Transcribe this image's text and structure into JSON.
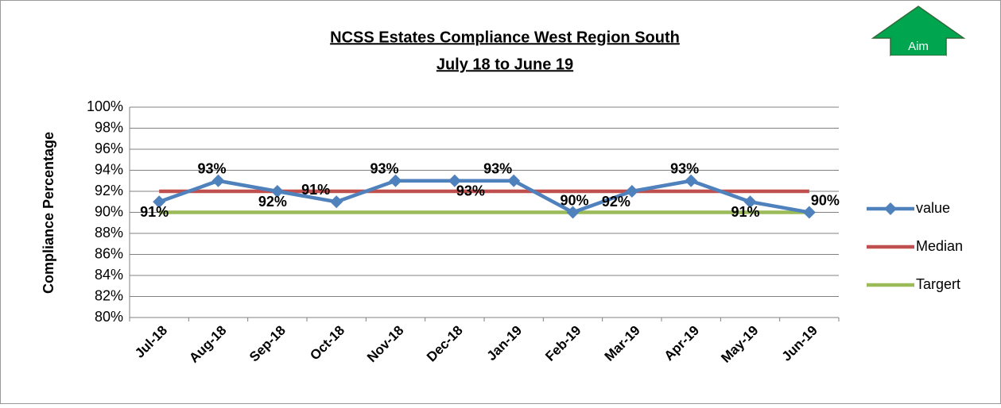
{
  "chart_data": {
    "type": "line",
    "title": "NCSS Estates Compliance West Region South",
    "subtitle": "July 18 to June 19",
    "y_label": "Compliance Percentage",
    "annotation": [
      "Aim",
      "90%"
    ],
    "categories": [
      "Jul-18",
      "Aug-18",
      "Sep-18",
      "Oct-18",
      "Nov-18",
      "Dec-18",
      "Jan-19",
      "Feb-19",
      "Mar-19",
      "Apr-19",
      "May-19",
      "Jun-19"
    ],
    "series": [
      {
        "name": "value",
        "color": "#4f81bd",
        "values": [
          91,
          93,
          92,
          91,
          93,
          93,
          93,
          90,
          92,
          93,
          91,
          90
        ],
        "value_labels": [
          "91%",
          "93%",
          "92%",
          "91%",
          "93%",
          "93%",
          "93%",
          "90%",
          "92%",
          "93%",
          "91%",
          "90%"
        ],
        "marker": "diamond"
      },
      {
        "name": "Median",
        "color": "#c0504d",
        "values": [
          92,
          92,
          92,
          92,
          92,
          92,
          92,
          92,
          92,
          92,
          92,
          92
        ]
      },
      {
        "name": "Targert",
        "color": "#9bbb59",
        "values": [
          90,
          90,
          90,
          90,
          90,
          90,
          90,
          90,
          90,
          90,
          90,
          90
        ]
      }
    ],
    "ylim": [
      80,
      100
    ],
    "yticks": [
      {
        "value": 80,
        "label": "80%"
      },
      {
        "value": 82,
        "label": "82%"
      },
      {
        "value": 84,
        "label": "84%"
      },
      {
        "value": 86,
        "label": "86%"
      },
      {
        "value": 88,
        "label": "88%"
      },
      {
        "value": 90,
        "label": "90%"
      },
      {
        "value": 92,
        "label": "92%"
      },
      {
        "value": 94,
        "label": "94%"
      },
      {
        "value": 96,
        "label": "96%"
      },
      {
        "value": 98,
        "label": "98%"
      },
      {
        "value": 100,
        "label": "100%"
      }
    ],
    "grid": true,
    "legend": "right"
  }
}
